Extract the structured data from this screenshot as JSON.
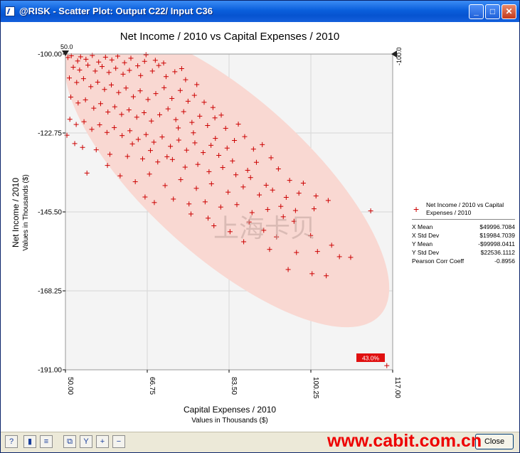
{
  "window": {
    "title": "@RISK - Scatter Plot: Output C22/ Input C36",
    "min_glyph": "_",
    "max_glyph": "□",
    "close_glyph": "✕"
  },
  "chart_data": {
    "type": "scatter",
    "title": "Net Income / 2010 vs Capital Expenses / 2010",
    "xlabel": "Capital Expenses / 2010",
    "xunits": "Values in Thousands ($)",
    "ylabel": "Net Income / 2010",
    "yunits": "Values in Thousands ($)",
    "xlim": [
      50,
      117
    ],
    "ylim": [
      -191,
      -100
    ],
    "xticks": [
      "50.00",
      "66.75",
      "83.50",
      "100.25",
      "117.00"
    ],
    "yticks": [
      "-100.00",
      "-122.75",
      "-145.50",
      "-168.25",
      "-191.00"
    ],
    "grid": true,
    "marker_color": "#cc0000",
    "ellipse_color": "#f9d8d2",
    "plot_bg": "#f4f4f4",
    "x_slider_label": "50.0",
    "y_slider_label": "-100.0",
    "delimiter_percent": "43.0%",
    "series": [
      {
        "name": "Net Income / 2010 vs Capital Expenses / 2010",
        "points": [
          [
            50.5,
            -101
          ],
          [
            51.2,
            -100.5
          ],
          [
            52.5,
            -102
          ],
          [
            53.1,
            -100.8
          ],
          [
            54.2,
            -101.5
          ],
          [
            55.5,
            -100.4
          ],
          [
            56.8,
            -102.3
          ],
          [
            58.2,
            -100.9
          ],
          [
            59.5,
            -101.7
          ],
          [
            60.7,
            -100.6
          ],
          [
            62.1,
            -102.5
          ],
          [
            63.4,
            -101.2
          ],
          [
            64.8,
            -103.4
          ],
          [
            66.2,
            -102.1
          ],
          [
            51.6,
            -103.8
          ],
          [
            52.9,
            -104.6
          ],
          [
            54.6,
            -103.2
          ],
          [
            56.1,
            -104.9
          ],
          [
            57.5,
            -103.6
          ],
          [
            58.9,
            -105.3
          ],
          [
            60.3,
            -104.1
          ],
          [
            61.8,
            -105.8
          ],
          [
            63.1,
            -104.7
          ],
          [
            65.4,
            -106.2
          ],
          [
            67.8,
            -104.9
          ],
          [
            69.1,
            -103.3
          ],
          [
            70.6,
            -106.5
          ],
          [
            72.4,
            -105.1
          ],
          [
            50.8,
            -106.9
          ],
          [
            52.3,
            -108.2
          ],
          [
            53.7,
            -107.1
          ],
          [
            55.2,
            -109.4
          ],
          [
            56.6,
            -108.1
          ],
          [
            58,
            -110.2
          ],
          [
            59.4,
            -108.9
          ],
          [
            60.9,
            -111.1
          ],
          [
            62.4,
            -109.8
          ],
          [
            63.9,
            -112.3
          ],
          [
            65.3,
            -110.6
          ],
          [
            66.9,
            -113.1
          ],
          [
            68.5,
            -111.4
          ],
          [
            70.2,
            -109.7
          ],
          [
            71.8,
            -112.8
          ],
          [
            73.5,
            -110.5
          ],
          [
            75.1,
            -113.6
          ],
          [
            76.4,
            -111.9
          ],
          [
            51.1,
            -112.4
          ],
          [
            52.6,
            -114.1
          ],
          [
            54.1,
            -113.2
          ],
          [
            55.8,
            -115.6
          ],
          [
            57.2,
            -114.3
          ],
          [
            58.7,
            -116.7
          ],
          [
            60.1,
            -115.2
          ],
          [
            61.5,
            -117.4
          ],
          [
            63,
            -116.1
          ],
          [
            64.6,
            -118.2
          ],
          [
            66.1,
            -116.9
          ],
          [
            67.6,
            -119.3
          ],
          [
            69.3,
            -117.5
          ],
          [
            71,
            -115.8
          ],
          [
            72.6,
            -118.9
          ],
          [
            74.2,
            -116.6
          ],
          [
            75.9,
            -119.7
          ],
          [
            77.5,
            -117.9
          ],
          [
            79.1,
            -120.6
          ],
          [
            80.6,
            -118.4
          ],
          [
            50.9,
            -118.8
          ],
          [
            52.2,
            -120.3
          ],
          [
            53.8,
            -119.5
          ],
          [
            55.4,
            -121.7
          ],
          [
            57,
            -120.4
          ],
          [
            58.5,
            -122.6
          ],
          [
            60,
            -121.2
          ],
          [
            61.6,
            -123.5
          ],
          [
            63.2,
            -122.1
          ],
          [
            64.9,
            -124.6
          ],
          [
            66.5,
            -123.2
          ],
          [
            68.1,
            -125.4
          ],
          [
            69.8,
            -123.9
          ],
          [
            71.5,
            -126.6
          ],
          [
            73.2,
            -124.8
          ],
          [
            74.8,
            -127.7
          ],
          [
            76.5,
            -125.6
          ],
          [
            78.2,
            -128.4
          ],
          [
            79.8,
            -126.3
          ],
          [
            81.4,
            -129.2
          ],
          [
            83.1,
            -127.1
          ],
          [
            84.6,
            -124.9
          ],
          [
            50.3,
            -123.4
          ],
          [
            51.9,
            -125.8
          ],
          [
            53.5,
            -126.9
          ],
          [
            56.3,
            -127.6
          ],
          [
            59.1,
            -128.9
          ],
          [
            62.7,
            -129.5
          ],
          [
            65.8,
            -130.2
          ],
          [
            68.9,
            -131.1
          ],
          [
            71.9,
            -130.4
          ],
          [
            74.5,
            -132.6
          ],
          [
            77.1,
            -131.8
          ],
          [
            79.4,
            -133.9
          ],
          [
            82.2,
            -132.7
          ],
          [
            84.9,
            -134.8
          ],
          [
            87.3,
            -133.5
          ],
          [
            89.1,
            -131.2
          ],
          [
            61.2,
            -135.1
          ],
          [
            64.3,
            -136.8
          ],
          [
            67.2,
            -134.6
          ],
          [
            70.4,
            -137.9
          ],
          [
            73.6,
            -136.2
          ],
          [
            76.8,
            -138.7
          ],
          [
            79.9,
            -137.4
          ],
          [
            83.3,
            -139.8
          ],
          [
            86.4,
            -138.3
          ],
          [
            89.7,
            -140.6
          ],
          [
            92.4,
            -139.2
          ],
          [
            95.2,
            -141.3
          ],
          [
            97.8,
            -140.1
          ],
          [
            72.1,
            -141.8
          ],
          [
            75.3,
            -143.2
          ],
          [
            78.6,
            -142.6
          ],
          [
            81.8,
            -144.1
          ],
          [
            85.1,
            -143.4
          ],
          [
            88.2,
            -145.7
          ],
          [
            91.4,
            -144.8
          ],
          [
            94.6,
            -146.9
          ],
          [
            97.1,
            -145.1
          ],
          [
            100.9,
            -144.6
          ],
          [
            112.5,
            -145.2
          ],
          [
            80.4,
            -149.5
          ],
          [
            83.7,
            -151.2
          ],
          [
            87.6,
            -148.4
          ],
          [
            90.6,
            -150.8
          ],
          [
            93.2,
            -152.7
          ],
          [
            86.5,
            -154.1
          ],
          [
            91.8,
            -156.3
          ],
          [
            97.3,
            -157.2
          ],
          [
            101.6,
            -156.9
          ],
          [
            106.1,
            -158.4
          ],
          [
            108.4,
            -158.6
          ],
          [
            95.6,
            -162.1
          ],
          [
            100.5,
            -163.3
          ],
          [
            103.4,
            -163.9
          ],
          [
            54.4,
            -134.3
          ],
          [
            58.6,
            -132.1
          ],
          [
            66.3,
            -141.2
          ],
          [
            68.2,
            -142.8
          ],
          [
            75.7,
            -146.1
          ],
          [
            79.2,
            -147.3
          ],
          [
            66.5,
            -100.2
          ],
          [
            68.4,
            -101.8
          ],
          [
            70.1,
            -102.6
          ],
          [
            73.8,
            -104.2
          ],
          [
            74.6,
            -107.4
          ],
          [
            76.9,
            -108.8
          ],
          [
            78.4,
            -113.9
          ],
          [
            80.2,
            -115.4
          ],
          [
            81.9,
            -117.6
          ],
          [
            82.8,
            -121.4
          ],
          [
            85.4,
            -120.2
          ],
          [
            86.7,
            -123.8
          ],
          [
            88.5,
            -127.4
          ],
          [
            90.3,
            -126.1
          ],
          [
            92.1,
            -129.9
          ],
          [
            93.6,
            -133.1
          ],
          [
            95.9,
            -136.4
          ],
          [
            98.7,
            -137.2
          ],
          [
            101.3,
            -140.9
          ],
          [
            103.8,
            -142.2
          ],
          [
            63.7,
            -125.9
          ],
          [
            67.4,
            -127.8
          ],
          [
            70.8,
            -129.6
          ],
          [
            73.1,
            -121.3
          ],
          [
            76.2,
            -122.7
          ],
          [
            80.7,
            -124.3
          ],
          [
            84.2,
            -130.8
          ],
          [
            87.9,
            -135.6
          ],
          [
            91.1,
            -137.8
          ],
          [
            94.1,
            -143.9
          ],
          [
            96.8,
            -148.2
          ],
          [
            100.2,
            -152.3
          ],
          [
            104.5,
            -155.1
          ],
          [
            115.8,
            -189.8
          ]
        ]
      }
    ],
    "stats": {
      "x_mean_label": "X Mean",
      "x_mean": "$49996.7084",
      "x_std_label": "X Std Dev",
      "x_std": "$19984.7039",
      "y_mean_label": "Y Mean",
      "y_mean": "-$99998.0411",
      "y_std_label": "Y Std Dev",
      "y_std": "$22536.1112",
      "pearson_label": "Pearson Corr Coeff",
      "pearson": "-0.8956"
    }
  },
  "watermark": {
    "chinese": "上海卡贝",
    "url": "www.cabit.com.cn"
  },
  "toolbar": {
    "icons": [
      "help-icon",
      "histogram-icon",
      "tornado-icon",
      "copy-data-icon",
      "filter-icon",
      "zoom-in-icon",
      "zoom-out-icon"
    ],
    "close_label": "Close"
  }
}
